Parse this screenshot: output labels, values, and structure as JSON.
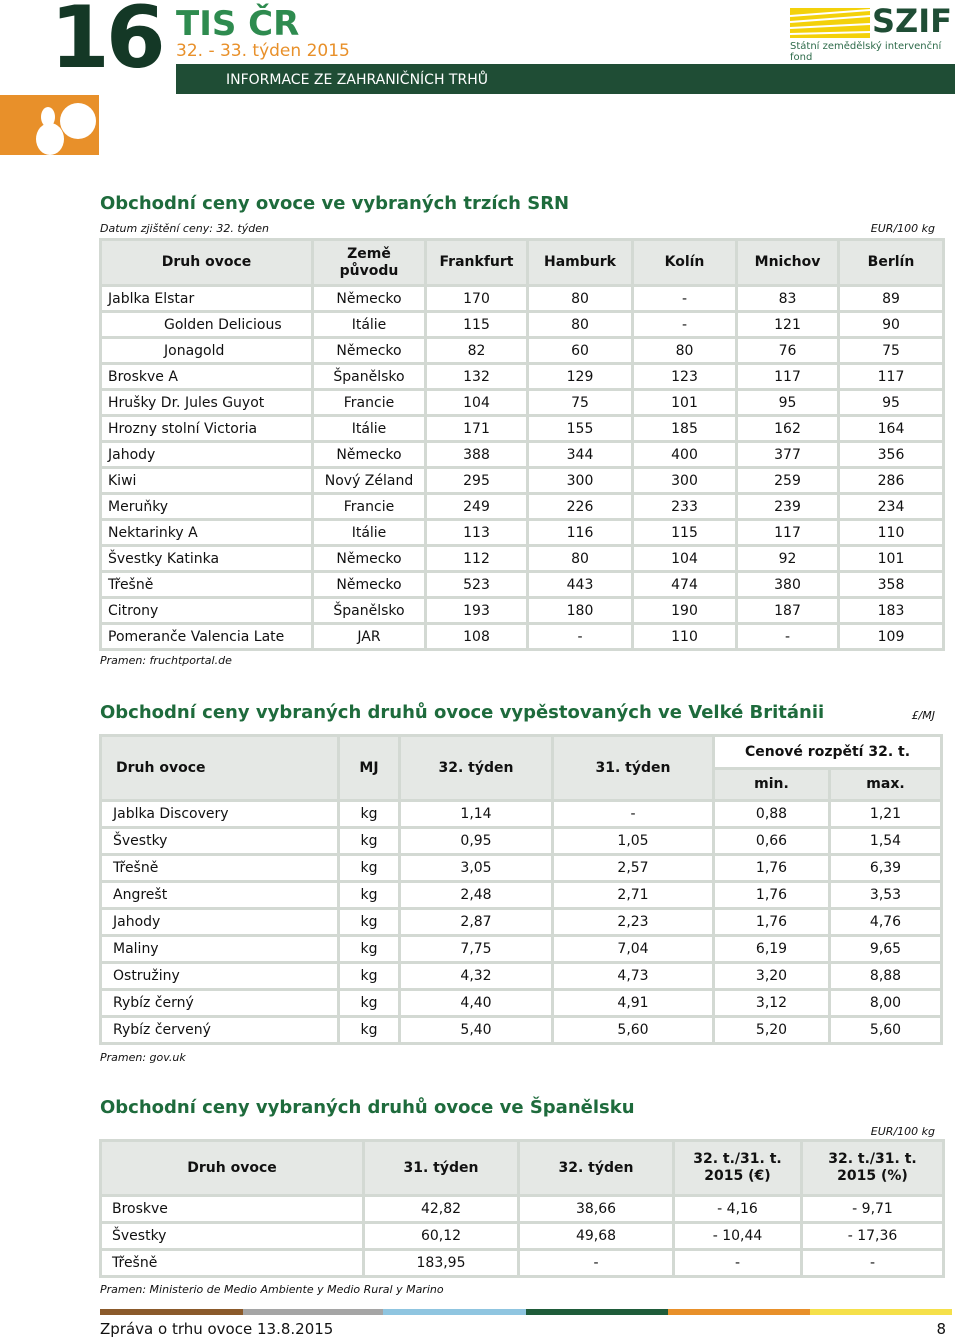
{
  "header": {
    "number": "16",
    "brand": "TIS ČR",
    "period": "32. - 33. týden 2015",
    "banner": "INFORMACE ZE ZAHRANIČNÍCH TRHŮ",
    "logo": "SZIF",
    "logo_subtitle": "Státní zemědělský intervenční fond"
  },
  "section1": {
    "title": "Obchodní ceny ovoce ve vybraných trzích SRN",
    "note": "Datum zjištění ceny: 32. týden",
    "unit": "EUR/100 kg",
    "source": "Pramen: fruchtportal.de",
    "table": {
      "columns": [
        "Druh ovoce",
        "Země původu",
        "Frankfurt",
        "Hamburk",
        "Kolín",
        "Mnichov",
        "Berlín"
      ],
      "rows": [
        [
          "Jablka Elstar",
          "Německo",
          "170",
          "80",
          "-",
          "83",
          "89"
        ],
        [
          "Golden Delicious",
          "Itálie",
          "115",
          "80",
          "-",
          "121",
          "90"
        ],
        [
          "Jonagold",
          "Německo",
          "82",
          "60",
          "80",
          "76",
          "75"
        ],
        [
          "Broskve A",
          "Španělsko",
          "132",
          "129",
          "123",
          "117",
          "117"
        ],
        [
          "Hrušky Dr. Jules Guyot",
          "Francie",
          "104",
          "75",
          "101",
          "95",
          "95"
        ],
        [
          "Hrozny stolní Victoria",
          "Itálie",
          "171",
          "155",
          "185",
          "162",
          "164"
        ],
        [
          "Jahody",
          "Německo",
          "388",
          "344",
          "400",
          "377",
          "356"
        ],
        [
          "Kiwi",
          "Nový Zéland",
          "295",
          "300",
          "300",
          "259",
          "286"
        ],
        [
          "Meruňky",
          "Francie",
          "249",
          "226",
          "233",
          "239",
          "234"
        ],
        [
          "Nektarinky A",
          "Itálie",
          "113",
          "116",
          "115",
          "117",
          "110"
        ],
        [
          "Švestky Katinka",
          "Německo",
          "112",
          "80",
          "104",
          "92",
          "101"
        ],
        [
          "Třešně",
          "Německo",
          "523",
          "443",
          "474",
          "380",
          "358"
        ],
        [
          "Citrony",
          "Španělsko",
          "193",
          "180",
          "190",
          "187",
          "183"
        ],
        [
          "Pomeranče Valencia Late",
          "JAR",
          "108",
          "-",
          "110",
          "-",
          "109"
        ]
      ]
    }
  },
  "section2": {
    "title": "Obchodní ceny vybraných druhů ovoce vypěstovaných ve Velké Británii",
    "unit": "£/MJ",
    "source": "Pramen: gov.uk",
    "table": {
      "columns": [
        "Druh ovoce",
        "MJ",
        "32. týden",
        "31. týden"
      ],
      "group": "Cenové rozpětí 32. t.",
      "subcolumns": [
        "min.",
        "max."
      ],
      "rows": [
        [
          "Jablka Discovery",
          "kg",
          "1,14",
          "-",
          "0,88",
          "1,21"
        ],
        [
          "Švestky",
          "kg",
          "0,95",
          "1,05",
          "0,66",
          "1,54"
        ],
        [
          "Třešně",
          "kg",
          "3,05",
          "2,57",
          "1,76",
          "6,39"
        ],
        [
          "Angrešt",
          "kg",
          "2,48",
          "2,71",
          "1,76",
          "3,53"
        ],
        [
          "Jahody",
          "kg",
          "2,87",
          "2,23",
          "1,76",
          "4,76"
        ],
        [
          "Maliny",
          "kg",
          "7,75",
          "7,04",
          "6,19",
          "9,65"
        ],
        [
          "Ostružiny",
          "kg",
          "4,32",
          "4,73",
          "3,20",
          "8,88"
        ],
        [
          "Rybíz černý",
          "kg",
          "4,40",
          "4,91",
          "3,12",
          "8,00"
        ],
        [
          "Rybíz červený",
          "kg",
          "5,40",
          "5,60",
          "5,20",
          "5,60"
        ]
      ]
    }
  },
  "section3": {
    "title": "Obchodní ceny vybraných druhů ovoce ve Španělsku",
    "unit": "EUR/100 kg",
    "source": "Pramen: Ministerio de Medio Ambiente y Medio Rural y Marino",
    "table": {
      "columns": [
        "Druh ovoce",
        "31. týden",
        "32. týden",
        "32. t./31. t. 2015 (€)",
        "32. t./31. t. 2015 (%)"
      ],
      "rows": [
        [
          "Broskve",
          "42,82",
          "38,66",
          "- 4,16",
          "- 9,71"
        ],
        [
          "Švestky",
          "60,12",
          "49,68",
          "- 10,44",
          "- 17,36"
        ],
        [
          "Třešně",
          "183,95",
          "-",
          "-",
          "-"
        ]
      ]
    }
  },
  "footer": {
    "text": "Zpráva o trhu ovoce 13.8.2015",
    "page": "8"
  }
}
